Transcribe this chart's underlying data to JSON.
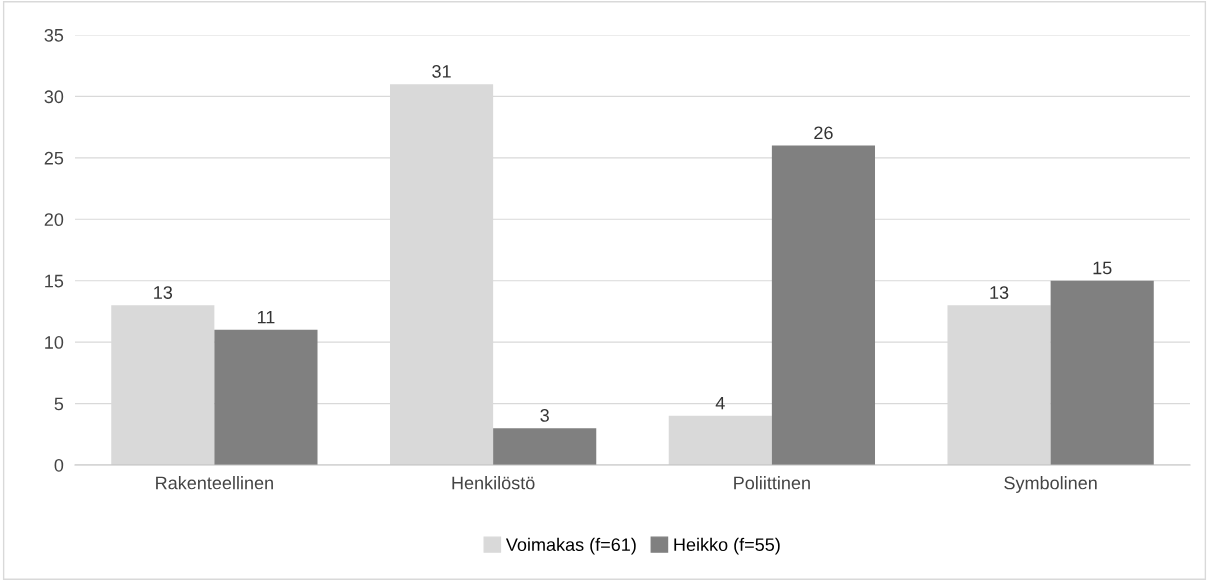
{
  "chart_data": {
    "type": "bar",
    "categories": [
      "Rakenteellinen",
      "Henkilöstö",
      "Poliittinen",
      "Symbolinen"
    ],
    "series": [
      {
        "name": "Voimakas (f=61)",
        "color": "#d9d9d9",
        "values": [
          13,
          31,
          4,
          13
        ]
      },
      {
        "name": "Heikko (f=55)",
        "color": "#808080",
        "values": [
          11,
          3,
          26,
          15
        ]
      }
    ],
    "ylim": [
      0,
      35
    ],
    "yticks": [
      0,
      5,
      10,
      15,
      20,
      25,
      30,
      35
    ],
    "grid": "y",
    "legend": "bottom",
    "data_labels": true
  }
}
